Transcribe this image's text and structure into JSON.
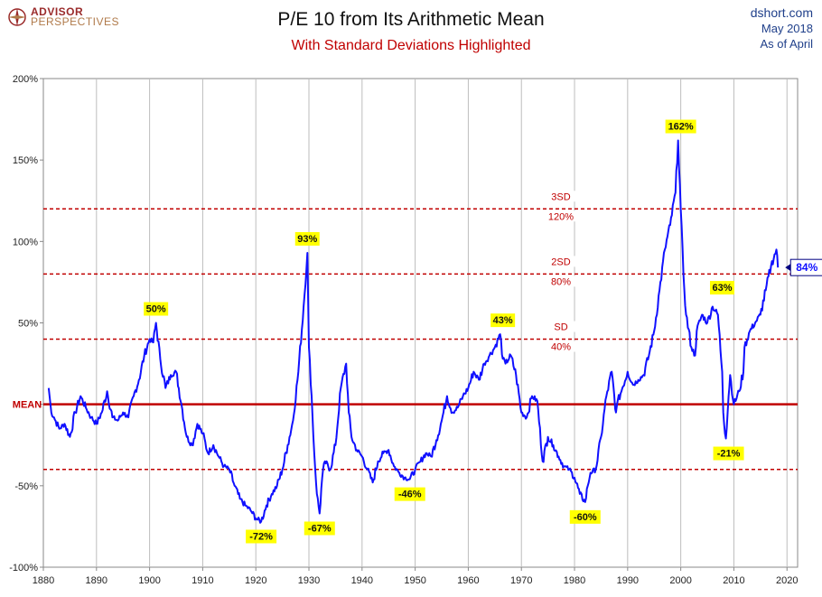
{
  "logo": {
    "line1": "ADVISOR",
    "line2": "PERSPECTIVES"
  },
  "header": {
    "site": "dshort.com",
    "date": "May 2018",
    "note": "As of April"
  },
  "chart_data": {
    "type": "line",
    "title": "P/E 10 from Its Arithmetic Mean",
    "subtitle": "With Standard Deviations Highlighted",
    "xlim": [
      1880,
      2022
    ],
    "ylim": [
      -100,
      200
    ],
    "x_ticks": [
      1880,
      1890,
      1900,
      1910,
      1920,
      1930,
      1940,
      1950,
      1960,
      1970,
      1980,
      1990,
      2000,
      2010,
      2020
    ],
    "y_ticks": [
      -100,
      -50,
      0,
      50,
      100,
      150,
      200
    ],
    "y_tick_labels": [
      "-100%",
      "-50%",
      "",
      "50%",
      "100%",
      "150%",
      "200%"
    ],
    "mean_label": "MEAN",
    "grid": "vertical",
    "line_color": "#1010ff",
    "mean_color": "#c00000",
    "band_color": "#c00000",
    "label_bg": "#ffff00",
    "bands": [
      {
        "value": 120,
        "label1": "3SD",
        "label2": "120%"
      },
      {
        "value": 80,
        "label1": "2SD",
        "label2": "80%"
      },
      {
        "value": 40,
        "label1": "SD",
        "label2": "40%"
      },
      {
        "value": -40
      }
    ],
    "series": [
      {
        "x": [
          1881,
          1881.5,
          1882,
          1883,
          1884,
          1885,
          1886,
          1887,
          1888,
          1889,
          1890,
          1891,
          1892,
          1893,
          1894,
          1895,
          1896,
          1897,
          1898,
          1899,
          1900,
          1900.7,
          1901.2,
          1902,
          1903,
          1904,
          1905,
          1906,
          1907,
          1908,
          1909,
          1910,
          1911,
          1912,
          1913,
          1914,
          1915,
          1916,
          1917,
          1918,
          1919,
          1920,
          1921,
          1922,
          1923,
          1924,
          1925,
          1926,
          1927,
          1928,
          1929,
          1929.7,
          1930,
          1930.5,
          1931,
          1931.5,
          1932,
          1932.5,
          1933,
          1934,
          1935,
          1936,
          1937,
          1937.5,
          1938,
          1939,
          1940,
          1941,
          1942,
          1943,
          1944,
          1945,
          1946,
          1947,
          1948,
          1949,
          1950,
          1951,
          1952,
          1953,
          1954,
          1955,
          1956,
          1957,
          1958,
          1959,
          1960,
          1961,
          1962,
          1963,
          1964,
          1965,
          1966,
          1966.5,
          1967,
          1968,
          1969,
          1970,
          1971,
          1972,
          1973,
          1974,
          1975,
          1976,
          1977,
          1978,
          1979,
          1980,
          1981,
          1982,
          1982.5,
          1983,
          1984,
          1985,
          1986,
          1987,
          1987.8,
          1988,
          1989,
          1990,
          1991,
          1992,
          1993,
          1994,
          1995,
          1996,
          1997,
          1998,
          1999,
          1999.5,
          2000,
          2000.5,
          2001,
          2002,
          2002.7,
          2003,
          2004,
          2005,
          2006,
          2007,
          2007.8,
          2008,
          2008.5,
          2009,
          2009.3,
          2010,
          2011,
          2011.8,
          2012,
          2013,
          2014,
          2015,
          2016,
          2017,
          2018,
          2018.3
        ],
        "y": [
          10,
          -5,
          -8,
          -15,
          -12,
          -20,
          -5,
          5,
          -2,
          -8,
          -12,
          -5,
          8,
          -8,
          -10,
          -5,
          -8,
          5,
          15,
          30,
          40,
          38,
          50,
          28,
          10,
          18,
          20,
          0,
          -20,
          -25,
          -12,
          -18,
          -30,
          -25,
          -32,
          -38,
          -40,
          -50,
          -58,
          -62,
          -65,
          -70,
          -72,
          -62,
          -55,
          -50,
          -40,
          -25,
          -10,
          20,
          60,
          93,
          35,
          5,
          -30,
          -55,
          -67,
          -45,
          -35,
          -40,
          -25,
          10,
          25,
          -5,
          -20,
          -28,
          -32,
          -40,
          -48,
          -35,
          -30,
          -28,
          -38,
          -42,
          -45,
          -46,
          -40,
          -35,
          -30,
          -32,
          -22,
          -10,
          5,
          -5,
          -2,
          5,
          10,
          20,
          15,
          25,
          30,
          35,
          43,
          28,
          25,
          30,
          18,
          -5,
          -8,
          5,
          2,
          -35,
          -20,
          -25,
          -32,
          -38,
          -40,
          -45,
          -55,
          -60,
          -50,
          -42,
          -40,
          -20,
          5,
          20,
          -5,
          0,
          10,
          20,
          12,
          15,
          18,
          30,
          45,
          70,
          95,
          110,
          130,
          162,
          120,
          80,
          55,
          35,
          30,
          45,
          55,
          50,
          60,
          55,
          20,
          -5,
          -21,
          5,
          18,
          0,
          8,
          20,
          35,
          45,
          50,
          55,
          70,
          85,
          95,
          84
        ]
      }
    ],
    "annotations": [
      {
        "x": 1901.2,
        "y": 50,
        "text": "50%",
        "pos": "above"
      },
      {
        "x": 1929.7,
        "y": 93,
        "text": "93%",
        "pos": "above"
      },
      {
        "x": 1966.5,
        "y": 43,
        "text": "43%",
        "pos": "above"
      },
      {
        "x": 2000,
        "y": 162,
        "text": "162%",
        "pos": "above"
      },
      {
        "x": 2007.8,
        "y": 63,
        "text": "63%",
        "pos": "above"
      },
      {
        "x": 1921,
        "y": -72,
        "text": "-72%",
        "pos": "below"
      },
      {
        "x": 1932,
        "y": -67,
        "text": "-67%",
        "pos": "below"
      },
      {
        "x": 1949,
        "y": -46,
        "text": "-46%",
        "pos": "below"
      },
      {
        "x": 1982,
        "y": -60,
        "text": "-60%",
        "pos": "below"
      },
      {
        "x": 2009,
        "y": -21,
        "text": "-21%",
        "pos": "below"
      }
    ],
    "current": {
      "x": 2018.3,
      "y": 84,
      "text": "84%"
    }
  }
}
